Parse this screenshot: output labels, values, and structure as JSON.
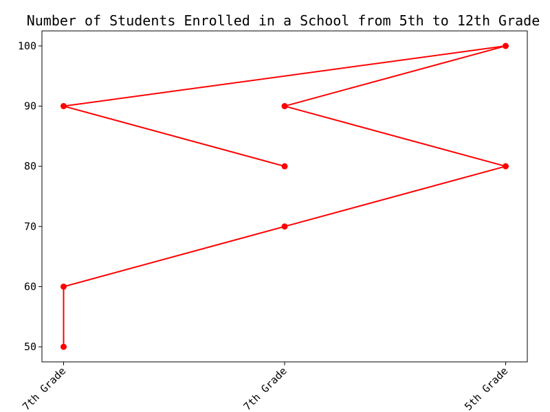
{
  "chart_data": {
    "type": "line",
    "title": "Number of Students Enrolled in a School from 5th to 12th Grade",
    "xlabel": "",
    "ylabel": "",
    "x_tick_labels": [
      "7th Grade",
      "7th Grade",
      "5th Grade"
    ],
    "y_ticks": [
      50,
      60,
      70,
      80,
      90,
      100
    ],
    "ylim": [
      47.5,
      102.5
    ],
    "grid": false,
    "legend": "none",
    "series": [
      {
        "color": "#ff0000",
        "marker": "circle",
        "points": [
          {
            "x": 0,
            "y": 50
          },
          {
            "x": 0,
            "y": 60
          },
          {
            "x": 1,
            "y": 70
          },
          {
            "x": 2,
            "y": 80
          },
          {
            "x": 1,
            "y": 90
          },
          {
            "x": 2,
            "y": 100
          },
          {
            "x": 0,
            "y": 90
          },
          {
            "x": 1,
            "y": 80
          }
        ]
      }
    ]
  }
}
